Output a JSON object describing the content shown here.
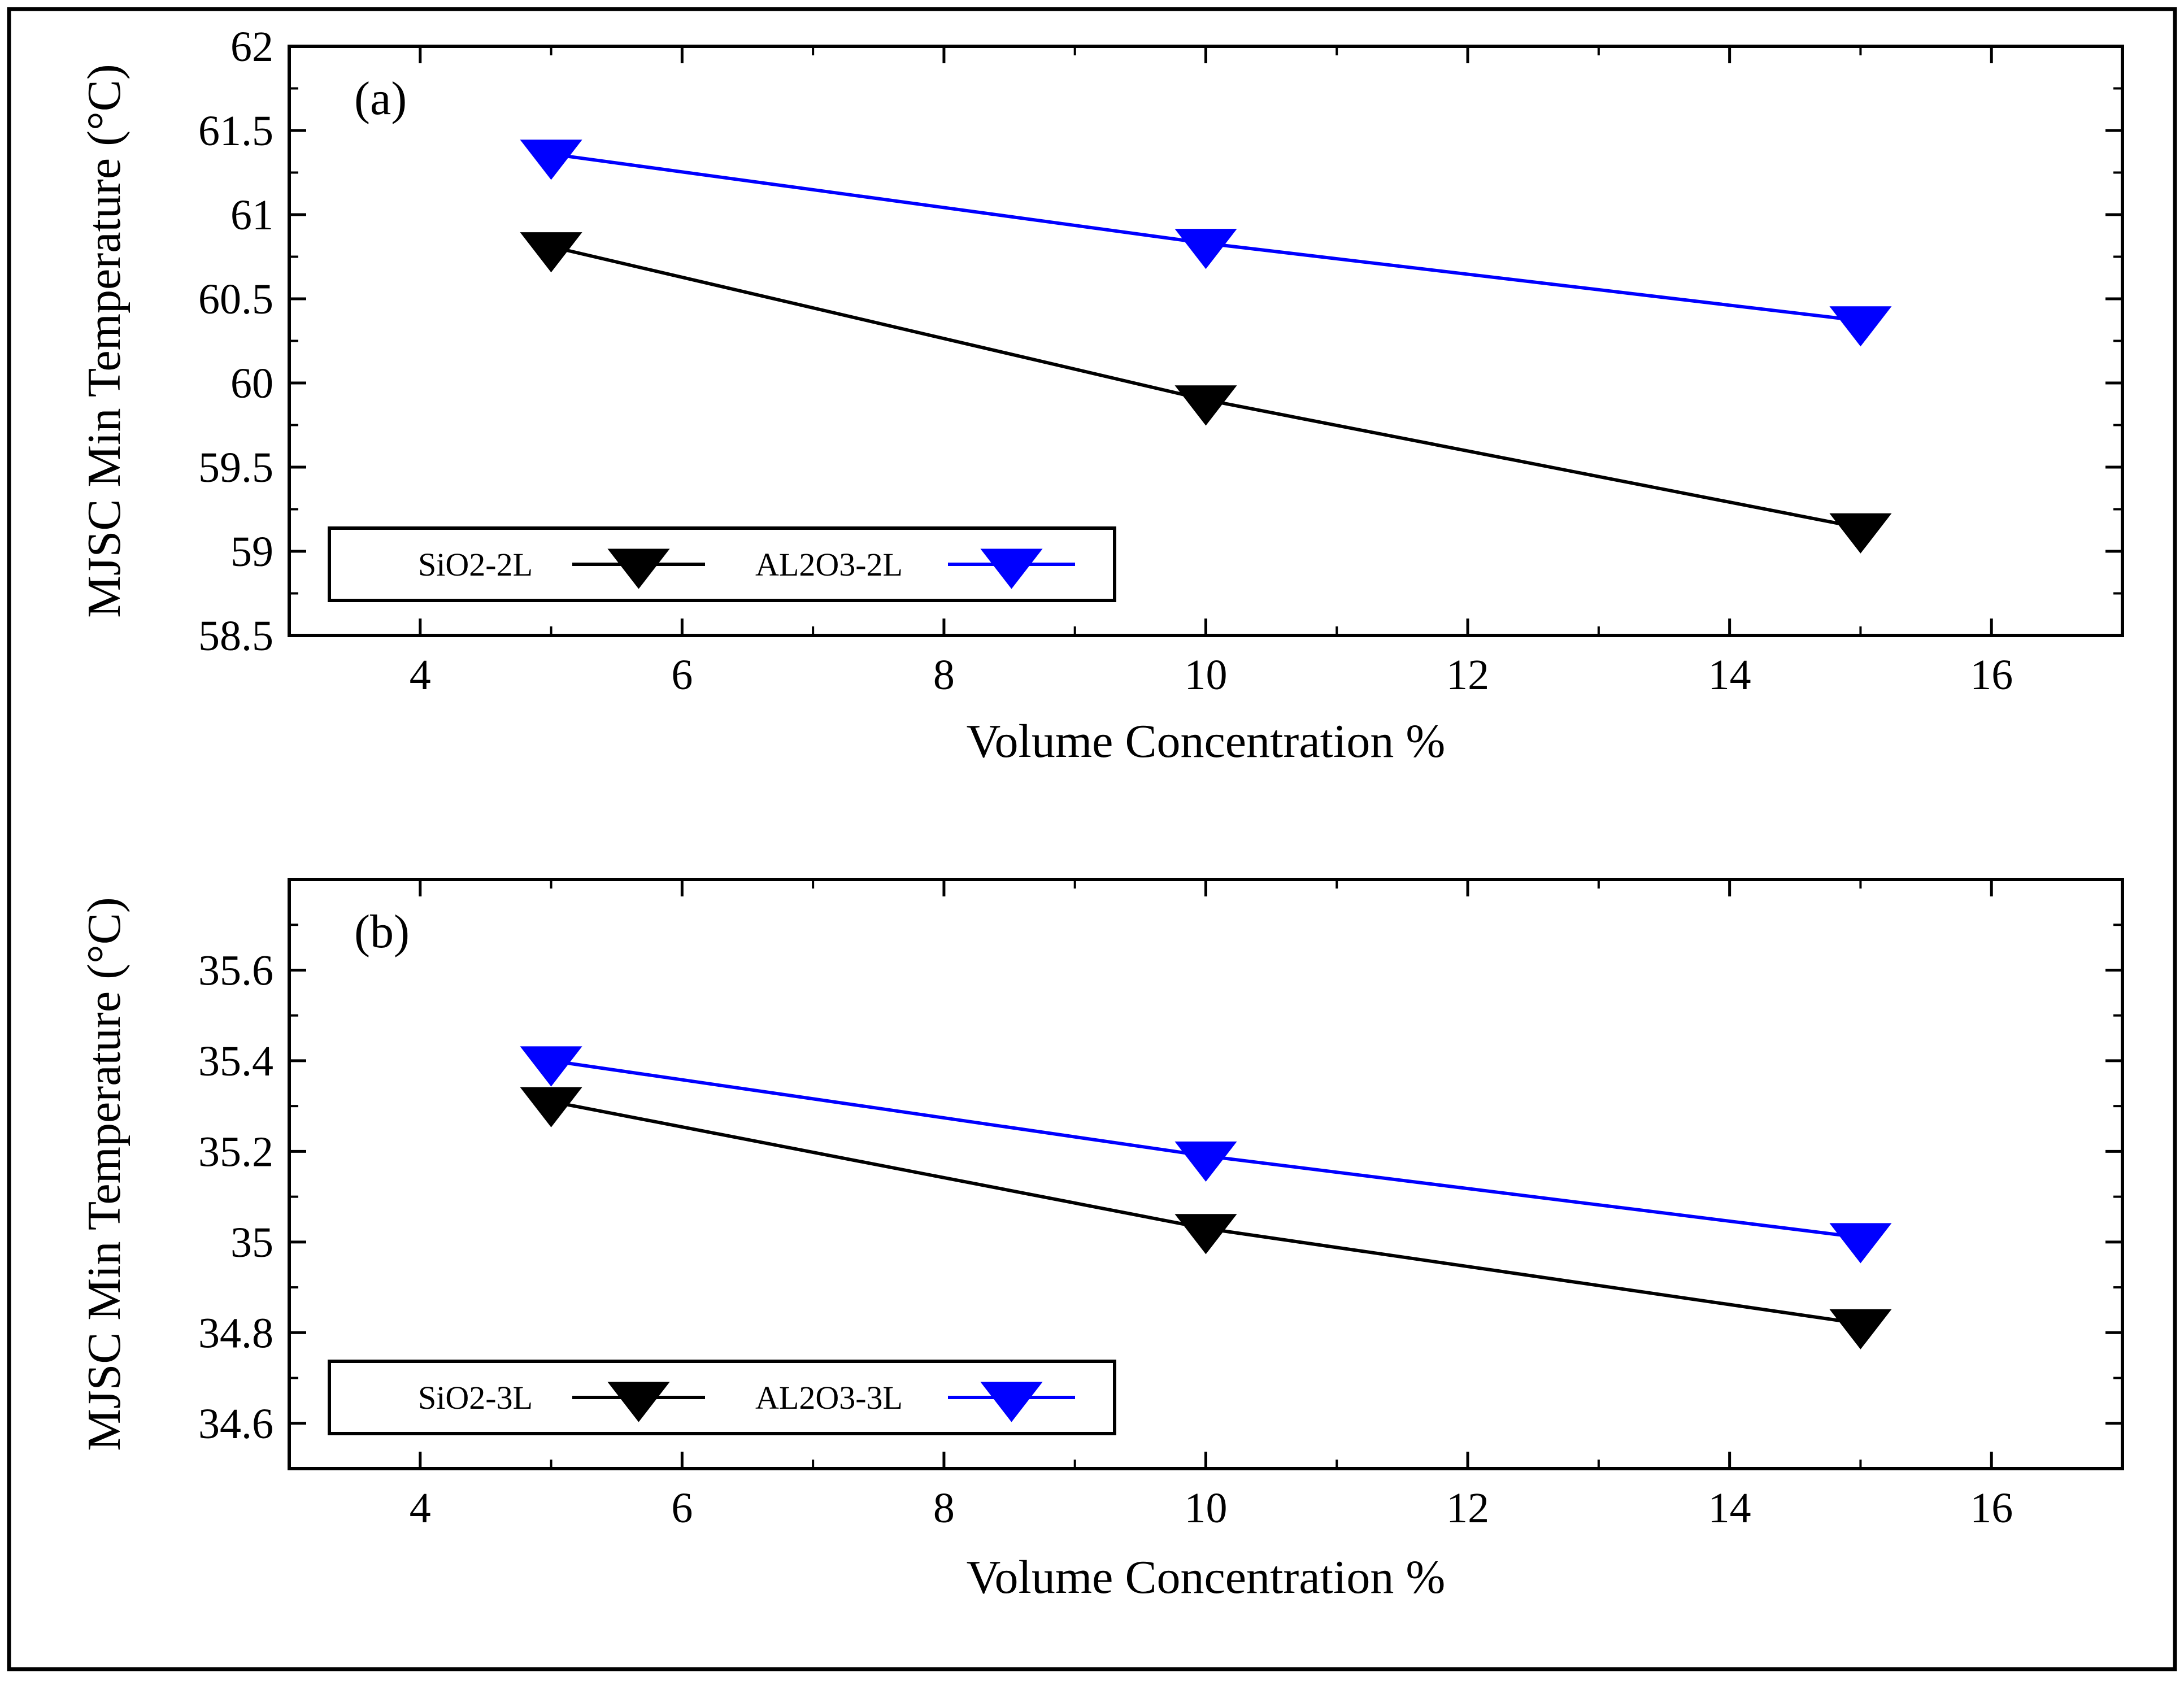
{
  "figure": {
    "background": "#ffffff",
    "frame_color": "#000000"
  },
  "chart_data": [
    {
      "type": "line",
      "panel_label": "(a)",
      "xlabel": "Volume Concentration %",
      "ylabel": "MJSC Min Temperature (°C)",
      "xlim": [
        3,
        17
      ],
      "ylim": [
        58.5,
        62
      ],
      "xticks": [
        4,
        6,
        8,
        10,
        12,
        14,
        16
      ],
      "xtick_labels": [
        "4",
        "6",
        "8",
        "10",
        "12",
        "14",
        "16"
      ],
      "yticks": [
        58.5,
        59,
        59.5,
        60,
        60.5,
        61,
        61.5,
        62
      ],
      "ytick_labels": [
        "58.5",
        "59",
        "59.5",
        "60",
        "60.5",
        "61",
        "61.5",
        "62"
      ],
      "x_minor_step": 1,
      "y_minor_step": 0.25,
      "legend_position": "bottom-left",
      "series": [
        {
          "name": "SiO2-2L",
          "color": "#000000",
          "marker": "down-triangle",
          "x": [
            5,
            10,
            15
          ],
          "y": [
            60.81,
            59.9,
            59.14
          ]
        },
        {
          "name": "AL2O3-2L",
          "color": "#0000ff",
          "marker": "down-triangle",
          "x": [
            5,
            10,
            15
          ],
          "y": [
            61.36,
            60.83,
            60.37
          ]
        }
      ]
    },
    {
      "type": "line",
      "panel_label": "(b)",
      "xlabel": "Volume Concentration %",
      "ylabel": "MJSC Min Temperature (°C)",
      "xlim": [
        3,
        17
      ],
      "ylim": [
        34.5,
        35.8
      ],
      "xticks": [
        4,
        6,
        8,
        10,
        12,
        14,
        16
      ],
      "xtick_labels": [
        "4",
        "6",
        "8",
        "10",
        "12",
        "14",
        "16"
      ],
      "yticks": [
        34.6,
        34.8,
        35,
        35.2,
        35.4,
        35.6
      ],
      "ytick_labels": [
        "34.6",
        "34.8",
        "35",
        "35.2",
        "35.4",
        "35.6"
      ],
      "x_minor_step": 1,
      "y_minor_step": 0.1,
      "legend_position": "bottom-left",
      "series": [
        {
          "name": "SiO2-3L",
          "color": "#000000",
          "marker": "down-triangle",
          "x": [
            5,
            10,
            15
          ],
          "y": [
            35.31,
            35.03,
            34.82
          ]
        },
        {
          "name": "AL2O3-3L",
          "color": "#0000ff",
          "marker": "down-triangle",
          "x": [
            5,
            10,
            15
          ],
          "y": [
            35.4,
            35.19,
            35.01
          ]
        }
      ]
    }
  ]
}
